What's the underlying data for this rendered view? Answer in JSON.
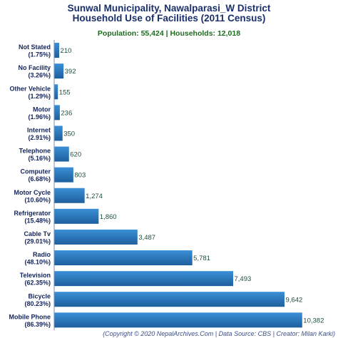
{
  "header": {
    "title_line1": "Sunwal Municipality, Nawalparasi_W District",
    "title_line2": "Household Use of Facilities (2011 Census)",
    "subtitle": "Population: 55,424 | Households: 12,018"
  },
  "footer": {
    "credit": "(Copyright © 2020 NepalArchives.Com | Data Source: CBS | Creator: Milan Karki)"
  },
  "colors": {
    "bar": "#2f7fc6",
    "bar_dark": "#1d5f9d",
    "title": "#1a2f6b",
    "subtitle": "#1f6b1f"
  },
  "chart_data": {
    "type": "bar",
    "orientation": "horizontal",
    "categories": [
      {
        "name": "Not Stated",
        "percent": "(1.75%)"
      },
      {
        "name": "No Facility",
        "percent": "(3.26%)"
      },
      {
        "name": "Other Vehicle",
        "percent": "(1.29%)"
      },
      {
        "name": "Motor",
        "percent": "(1.96%)"
      },
      {
        "name": "Internet",
        "percent": "(2.91%)"
      },
      {
        "name": "Telephone",
        "percent": "(5.16%)"
      },
      {
        "name": "Computer",
        "percent": "(6.68%)"
      },
      {
        "name": "Motor Cycle",
        "percent": "(10.60%)"
      },
      {
        "name": "Refrigerator",
        "percent": "(15.48%)"
      },
      {
        "name": "Cable Tv",
        "percent": "(29.01%)"
      },
      {
        "name": "Radio",
        "percent": "(48.10%)"
      },
      {
        "name": "Television",
        "percent": "(62.35%)"
      },
      {
        "name": "Bicycle",
        "percent": "(80.23%)"
      },
      {
        "name": "Mobile Phone",
        "percent": "(86.39%)"
      }
    ],
    "values": [
      210,
      392,
      155,
      236,
      350,
      620,
      803,
      1274,
      1860,
      3487,
      5781,
      7493,
      9642,
      10382
    ],
    "value_labels": [
      "210",
      "392",
      "155",
      "236",
      "350",
      "620",
      "803",
      "1,274",
      "1,860",
      "3,487",
      "5,781",
      "7,493",
      "9,642",
      "10,382"
    ],
    "xlim": [
      0,
      12000
    ],
    "grid": false,
    "legend": "none"
  }
}
